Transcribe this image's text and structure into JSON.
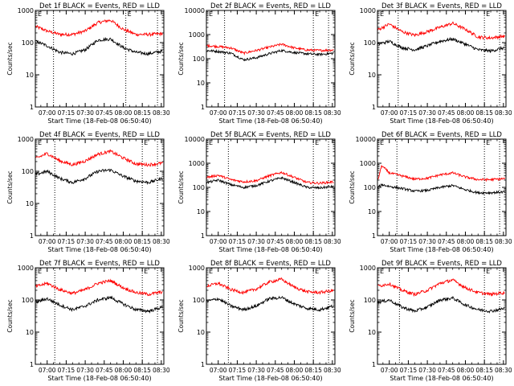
{
  "figure": {
    "ylabel": "Counts/sec",
    "xlabel": "Start Time (18-Feb-08 06:50:40)",
    "panels": [
      {
        "title": "Det 1f BLACK = Events, RED = LLD",
        "mark": "E"
      },
      {
        "title": "Det 2f BLACK = Events, RED = LLD",
        "mark": "E"
      },
      {
        "title": "Det 3f BLACK = Events, RED = LLD",
        "mark": "E"
      },
      {
        "title": "Det 4f BLACK = Events, RED = LLD",
        "mark": "E"
      },
      {
        "title": "Det 5f BLACK = Events, RED = LLD",
        "mark": "E"
      },
      {
        "title": "Det 6f BLACK = Events, RED = LLD",
        "mark": "E"
      },
      {
        "title": "Det 7f BLACK = Events, RED = LLD",
        "mark": "E"
      },
      {
        "title": "Det 8f BLACK = Events, RED = LLD",
        "mark": "E"
      },
      {
        "title": "Det 9f BLACK = Events, RED = LLD",
        "mark": "E"
      }
    ]
  },
  "colors": {
    "events": "#000000",
    "lld": "#ff0000",
    "axes": "#000000",
    "background": "#ffffff"
  },
  "chart_data": [
    {
      "type": "line",
      "title": "Det 1f BLACK = Events, RED = LLD",
      "xlabel": "Start Time (18-Feb-08 06:50:40)",
      "ylabel": "Counts/sec",
      "yscale": "log",
      "ylim": [
        1,
        1000
      ],
      "yticks": [
        "1",
        "10",
        "100",
        "1000"
      ],
      "xticks": [
        "07:00",
        "07:15",
        "07:30",
        "07:45",
        "08:00",
        "08:15",
        "08:30"
      ],
      "xtick_minutes": [
        420,
        435,
        450,
        465,
        480,
        495,
        510
      ],
      "xlim_minutes": [
        410.67,
        512
      ],
      "vlines_minutes": [
        425,
        482,
        507
      ],
      "grid": false,
      "legend": "none",
      "x_minutes": [
        411,
        420,
        430,
        440,
        450,
        460,
        470,
        480,
        490,
        500,
        511
      ],
      "series": [
        {
          "color": "#ff0000",
          "values": [
            320,
            230,
            180,
            180,
            230,
            420,
            500,
            260,
            180,
            180,
            190
          ]
        },
        {
          "color": "#000000",
          "values": [
            110,
            80,
            50,
            45,
            60,
            120,
            130,
            70,
            50,
            45,
            55
          ]
        }
      ]
    },
    {
      "type": "line",
      "title": "Det 2f BLACK = Events, RED = LLD",
      "xlabel": "Start Time (18-Feb-08 06:50:40)",
      "ylabel": "Counts/sec",
      "yscale": "log",
      "ylim": [
        1,
        10000
      ],
      "yticks": [
        "1",
        "10",
        "100",
        "1000",
        "10000"
      ],
      "xticks": [
        "07:00",
        "07:15",
        "07:30",
        "07:45",
        "08:00",
        "08:15",
        "08:30"
      ],
      "xtick_minutes": [
        420,
        435,
        450,
        465,
        480,
        495,
        510
      ],
      "xlim_minutes": [
        410.67,
        512
      ],
      "vlines_minutes": [
        425,
        495,
        507
      ],
      "grid": false,
      "legend": "none",
      "x_minutes": [
        411,
        420,
        430,
        440,
        450,
        460,
        470,
        480,
        490,
        500,
        511
      ],
      "series": [
        {
          "color": "#ff0000",
          "values": [
            350,
            320,
            280,
            170,
            220,
            300,
            400,
            280,
            230,
            220,
            230
          ]
        },
        {
          "color": "#000000",
          "values": [
            220,
            200,
            170,
            90,
            110,
            160,
            220,
            180,
            160,
            150,
            170
          ]
        }
      ]
    },
    {
      "type": "line",
      "title": "Det 3f BLACK = Events, RED = LLD",
      "xlabel": "Start Time (18-Feb-08 06:50:40)",
      "ylabel": "Counts/sec",
      "yscale": "log",
      "ylim": [
        1,
        1000
      ],
      "yticks": [
        "1",
        "10",
        "100",
        "1000"
      ],
      "xticks": [
        "07:00",
        "07:15",
        "07:30",
        "07:45",
        "08:00",
        "08:15",
        "08:30"
      ],
      "xtick_minutes": [
        420,
        435,
        450,
        465,
        480,
        495,
        510
      ],
      "xlim_minutes": [
        410.67,
        512
      ],
      "vlines_minutes": [
        427,
        495,
        507
      ],
      "grid": false,
      "legend": "none",
      "x_minutes": [
        411,
        420,
        430,
        440,
        450,
        460,
        470,
        480,
        490,
        500,
        511
      ],
      "series": [
        {
          "color": "#ff0000",
          "values": [
            250,
            380,
            220,
            170,
            220,
            300,
            400,
            260,
            150,
            140,
            160
          ]
        },
        {
          "color": "#000000",
          "values": [
            90,
            110,
            70,
            60,
            80,
            110,
            130,
            90,
            60,
            55,
            70
          ]
        }
      ]
    },
    {
      "type": "line",
      "title": "Det 4f BLACK = Events, RED = LLD",
      "xlabel": "Start Time (18-Feb-08 06:50:40)",
      "ylabel": "Counts/sec",
      "yscale": "log",
      "ylim": [
        1,
        1000
      ],
      "yticks": [
        "1",
        "10",
        "100",
        "1000"
      ],
      "xticks": [
        "07:00",
        "07:15",
        "07:30",
        "07:45",
        "08:00",
        "08:15",
        "08:30"
      ],
      "xtick_minutes": [
        420,
        435,
        450,
        465,
        480,
        495,
        510
      ],
      "xlim_minutes": [
        410.67,
        512
      ],
      "vlines_minutes": [
        426,
        495,
        507
      ],
      "grid": false,
      "legend": "none",
      "x_minutes": [
        411,
        420,
        430,
        440,
        450,
        460,
        470,
        480,
        490,
        500,
        511
      ],
      "series": [
        {
          "color": "#ff0000",
          "values": [
            250,
            360,
            210,
            160,
            210,
            340,
            420,
            260,
            170,
            160,
            180
          ]
        },
        {
          "color": "#000000",
          "values": [
            80,
            100,
            60,
            45,
            60,
            100,
            110,
            70,
            50,
            45,
            60
          ]
        }
      ]
    },
    {
      "type": "line",
      "title": "Det 5f BLACK = Events, RED = LLD",
      "xlabel": "Start Time (18-Feb-08 06:50:40)",
      "ylabel": "Counts/sec",
      "yscale": "log",
      "ylim": [
        1,
        10000
      ],
      "yticks": [
        "1",
        "10",
        "100",
        "1000",
        "10000"
      ],
      "xticks": [
        "07:00",
        "07:15",
        "07:30",
        "07:45",
        "08:00",
        "08:15",
        "08:30"
      ],
      "xtick_minutes": [
        420,
        435,
        450,
        465,
        480,
        495,
        510
      ],
      "xlim_minutes": [
        410.67,
        512
      ],
      "vlines_minutes": [
        428,
        495,
        507
      ],
      "grid": false,
      "legend": "none",
      "x_minutes": [
        411,
        420,
        430,
        440,
        450,
        460,
        470,
        480,
        490,
        500,
        511
      ],
      "series": [
        {
          "color": "#ff0000",
          "values": [
            260,
            320,
            210,
            170,
            190,
            300,
            420,
            260,
            160,
            150,
            170
          ]
        },
        {
          "color": "#000000",
          "values": [
            160,
            200,
            130,
            100,
            120,
            180,
            250,
            160,
            100,
            95,
            110
          ]
        }
      ]
    },
    {
      "type": "line",
      "title": "Det 6f BLACK = Events, RED = LLD",
      "xlabel": "Start Time (18-Feb-08 06:50:40)",
      "ylabel": "Counts/sec",
      "yscale": "log",
      "ylim": [
        1,
        10000
      ],
      "yticks": [
        "1",
        "10",
        "100",
        "1000",
        "10000"
      ],
      "xticks": [
        "07:00",
        "07:15",
        "07:30",
        "07:45",
        "08:00",
        "08:15",
        "08:30"
      ],
      "xtick_minutes": [
        420,
        435,
        450,
        465,
        480,
        495,
        510
      ],
      "xlim_minutes": [
        410.67,
        512
      ],
      "vlines_minutes": [
        426,
        495,
        507
      ],
      "grid": false,
      "legend": "none",
      "x_minutes": [
        411,
        414,
        420,
        430,
        440,
        450,
        460,
        470,
        480,
        490,
        500,
        511
      ],
      "series": [
        {
          "color": "#ff0000",
          "values": [
            200,
            800,
            400,
            300,
            220,
            240,
            330,
            400,
            270,
            210,
            210,
            230
          ]
        },
        {
          "color": "#000000",
          "values": [
            100,
            130,
            110,
            90,
            70,
            75,
            100,
            120,
            80,
            60,
            60,
            65
          ]
        }
      ]
    },
    {
      "type": "line",
      "title": "Det 7f BLACK = Events, RED = LLD",
      "xlabel": "Start Time (18-Feb-08 06:50:40)",
      "ylabel": "Counts/sec",
      "yscale": "log",
      "ylim": [
        1,
        1000
      ],
      "yticks": [
        "1",
        "10",
        "100",
        "1000"
      ],
      "xticks": [
        "07:00",
        "07:15",
        "07:30",
        "07:45",
        "08:00",
        "08:15",
        "08:30"
      ],
      "xtick_minutes": [
        420,
        435,
        450,
        465,
        480,
        495,
        510
      ],
      "xlim_minutes": [
        410.67,
        512
      ],
      "vlines_minutes": [
        426,
        495,
        507
      ],
      "grid": false,
      "legend": "none",
      "x_minutes": [
        411,
        420,
        430,
        440,
        450,
        460,
        470,
        480,
        490,
        500,
        511
      ],
      "series": [
        {
          "color": "#ff0000",
          "values": [
            260,
            330,
            210,
            160,
            210,
            330,
            400,
            240,
            170,
            150,
            180
          ]
        },
        {
          "color": "#000000",
          "values": [
            85,
            110,
            70,
            50,
            65,
            100,
            120,
            75,
            50,
            45,
            60
          ]
        }
      ]
    },
    {
      "type": "line",
      "title": "Det 8f BLACK = Events, RED = LLD",
      "xlabel": "Start Time (18-Feb-08 06:50:40)",
      "ylabel": "Counts/sec",
      "yscale": "log",
      "ylim": [
        1,
        1000
      ],
      "yticks": [
        "1",
        "10",
        "100",
        "1000"
      ],
      "xticks": [
        "07:00",
        "07:15",
        "07:30",
        "07:45",
        "08:00",
        "08:15",
        "08:30"
      ],
      "xtick_minutes": [
        420,
        435,
        450,
        465,
        480,
        495,
        510
      ],
      "xlim_minutes": [
        410.67,
        512
      ],
      "vlines_minutes": [
        428,
        495,
        507
      ],
      "grid": false,
      "legend": "none",
      "x_minutes": [
        411,
        420,
        430,
        440,
        450,
        460,
        470,
        480,
        490,
        500,
        511
      ],
      "series": [
        {
          "color": "#ff0000",
          "values": [
            270,
            330,
            210,
            170,
            220,
            360,
            440,
            250,
            180,
            170,
            200
          ]
        },
        {
          "color": "#000000",
          "values": [
            90,
            110,
            65,
            50,
            65,
            110,
            120,
            75,
            55,
            50,
            65
          ]
        }
      ]
    },
    {
      "type": "line",
      "title": "Det 9f BLACK = Events, RED = LLD",
      "xlabel": "Start Time (18-Feb-08 06:50:40)",
      "ylabel": "Counts/sec",
      "yscale": "log",
      "ylim": [
        1,
        1000
      ],
      "yticks": [
        "1",
        "10",
        "100",
        "1000"
      ],
      "xticks": [
        "07:00",
        "07:15",
        "07:30",
        "07:45",
        "08:00",
        "08:15",
        "08:30"
      ],
      "xtick_minutes": [
        420,
        435,
        450,
        465,
        480,
        495,
        510
      ],
      "xlim_minutes": [
        410.67,
        512
      ],
      "vlines_minutes": [
        428,
        495,
        507
      ],
      "grid": false,
      "legend": "none",
      "x_minutes": [
        411,
        420,
        430,
        440,
        450,
        460,
        470,
        480,
        490,
        500,
        511
      ],
      "series": [
        {
          "color": "#ff0000",
          "values": [
            270,
            320,
            200,
            150,
            200,
            330,
            420,
            240,
            170,
            150,
            170
          ]
        },
        {
          "color": "#000000",
          "values": [
            85,
            100,
            60,
            45,
            60,
            100,
            115,
            70,
            50,
            45,
            55
          ]
        }
      ]
    }
  ]
}
